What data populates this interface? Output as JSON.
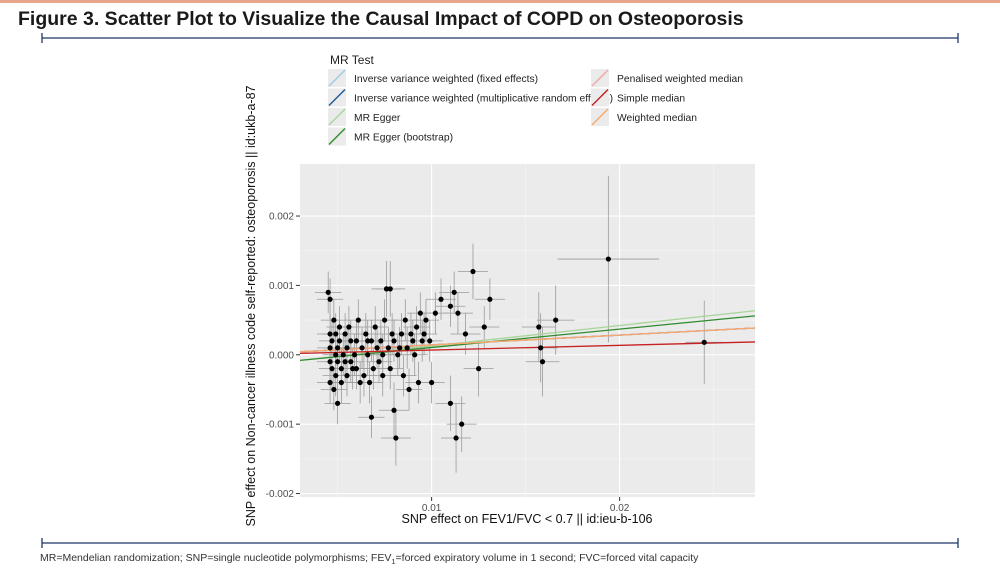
{
  "figure": {
    "title": "Figure 3. Scatter Plot to Visualize the Causal Impact of COPD on Osteoporosis",
    "footnote_before": "MR=Mendelian randomization; SNP=single nucleotide polymorphisms; FEV",
    "footnote_sub": "1",
    "footnote_after": "=forced expiratory volume in 1 second; FVC=forced vital capacity",
    "rule_color": "#1f3864",
    "accent_color": "#e8a58a"
  },
  "chart_data": {
    "type": "scatter",
    "xlabel": "SNP effect on FEV1/FVC < 0.7 || id:ieu-b-106",
    "ylabel": "SNP effect on Non-cancer illness code  self-reported: osteoporosis || id:ukb-a-87",
    "xlim": [
      0.003,
      0.0272
    ],
    "ylim": [
      -0.00205,
      0.00275
    ],
    "xticks": [
      0.01,
      0.02
    ],
    "xtick_labels": [
      "0.01",
      "0.02"
    ],
    "yticks": [
      -0.002,
      -0.001,
      0.0,
      0.001,
      0.002
    ],
    "ytick_labels": [
      "-0.002",
      "-0.001",
      "0.000",
      "0.001",
      "0.002"
    ],
    "grid": true,
    "legend": {
      "title": "MR Test",
      "placement": "top",
      "entries": [
        {
          "label": "Inverse variance weighted (fixed effects)",
          "color": "#9ec9e2"
        },
        {
          "label": "Inverse variance weighted (multiplicative random effects)",
          "color": "#1f5a96"
        },
        {
          "label": "MR Egger",
          "color": "#a8d59a"
        },
        {
          "label": "MR Egger (bootstrap)",
          "color": "#2e8b2e"
        },
        {
          "label": "Penalised weighted median",
          "color": "#f4a6a6"
        },
        {
          "label": "Simple median",
          "color": "#c62020"
        },
        {
          "label": "Weighted median",
          "color": "#f8a86c"
        }
      ]
    },
    "lines": [
      {
        "method": "Inverse variance weighted (fixed effects)",
        "intercept": 0.0,
        "slope": 0.0142
      },
      {
        "method": "Inverse variance weighted (multiplicative random effects)",
        "intercept": 0.0,
        "slope": 0.0142
      },
      {
        "method": "MR Egger",
        "intercept": -0.00017,
        "slope": 0.0296
      },
      {
        "method": "MR Egger (bootstrap)",
        "intercept": -0.00016,
        "slope": 0.0265
      },
      {
        "method": "Penalised weighted median",
        "intercept": 0.0,
        "slope": 0.0142
      },
      {
        "method": "Simple median",
        "intercept": 0.0,
        "slope": 0.0068
      },
      {
        "method": "Weighted median",
        "intercept": 0.0,
        "slope": 0.0142
      }
    ],
    "points": [
      {
        "x": 0.0045,
        "y": 0.0009,
        "xe": 0.0007,
        "ye": 0.0003
      },
      {
        "x": 0.0046,
        "y": 0.0008,
        "xe": 0.0007,
        "ye": 0.0003
      },
      {
        "x": 0.0046,
        "y": 0.0003,
        "xe": 0.0007,
        "ye": 0.0003
      },
      {
        "x": 0.0046,
        "y": 0.0001,
        "xe": 0.0007,
        "ye": 0.0003
      },
      {
        "x": 0.0046,
        "y": -0.0001,
        "xe": 0.0007,
        "ye": 0.0003
      },
      {
        "x": 0.0046,
        "y": -0.0004,
        "xe": 0.0007,
        "ye": 0.0003
      },
      {
        "x": 0.0047,
        "y": 0.0002,
        "xe": 0.0007,
        "ye": 0.0003
      },
      {
        "x": 0.0047,
        "y": -0.0002,
        "xe": 0.0007,
        "ye": 0.0003
      },
      {
        "x": 0.0048,
        "y": 0.0005,
        "xe": 0.0007,
        "ye": 0.0003
      },
      {
        "x": 0.0048,
        "y": -0.0005,
        "xe": 0.0007,
        "ye": 0.0003
      },
      {
        "x": 0.0049,
        "y": 0.0003,
        "xe": 0.0007,
        "ye": 0.0003
      },
      {
        "x": 0.0049,
        "y": 0.0,
        "xe": 0.0007,
        "ye": 0.0003
      },
      {
        "x": 0.0049,
        "y": -0.0003,
        "xe": 0.0007,
        "ye": 0.0003
      },
      {
        "x": 0.005,
        "y": -0.0007,
        "xe": 0.0007,
        "ye": 0.0003
      },
      {
        "x": 0.005,
        "y": 0.0001,
        "xe": 0.0007,
        "ye": 0.0003
      },
      {
        "x": 0.005,
        "y": -0.0001,
        "xe": 0.0007,
        "ye": 0.0003
      },
      {
        "x": 0.0051,
        "y": 0.0004,
        "xe": 0.0007,
        "ye": 0.0003
      },
      {
        "x": 0.0051,
        "y": 0.0002,
        "xe": 0.0007,
        "ye": 0.0003
      },
      {
        "x": 0.0052,
        "y": -0.0002,
        "xe": 0.0007,
        "ye": 0.0003
      },
      {
        "x": 0.0052,
        "y": -0.0004,
        "xe": 0.0007,
        "ye": 0.0003
      },
      {
        "x": 0.0053,
        "y": 0.0,
        "xe": 0.0007,
        "ye": 0.0003
      },
      {
        "x": 0.0054,
        "y": 0.0003,
        "xe": 0.0007,
        "ye": 0.0003
      },
      {
        "x": 0.0054,
        "y": -0.0001,
        "xe": 0.0007,
        "ye": 0.0003
      },
      {
        "x": 0.0055,
        "y": 0.0001,
        "xe": 0.0007,
        "ye": 0.0003
      },
      {
        "x": 0.0055,
        "y": -0.0003,
        "xe": 0.0007,
        "ye": 0.0003
      },
      {
        "x": 0.0056,
        "y": 0.0004,
        "xe": 0.0007,
        "ye": 0.0003
      },
      {
        "x": 0.0057,
        "y": -0.0001,
        "xe": 0.0007,
        "ye": 0.0003
      },
      {
        "x": 0.0057,
        "y": 0.0002,
        "xe": 0.0007,
        "ye": 0.0003
      },
      {
        "x": 0.0058,
        "y": -0.0002,
        "xe": 0.0007,
        "ye": 0.0003
      },
      {
        "x": 0.0059,
        "y": 0.0,
        "xe": 0.0007,
        "ye": 0.0003
      },
      {
        "x": 0.006,
        "y": 0.0002,
        "xe": 0.0007,
        "ye": 0.0003
      },
      {
        "x": 0.006,
        "y": -0.0002,
        "xe": 0.0007,
        "ye": 0.0003
      },
      {
        "x": 0.0061,
        "y": 0.0005,
        "xe": 0.0007,
        "ye": 0.0003
      },
      {
        "x": 0.0062,
        "y": -0.0004,
        "xe": 0.0007,
        "ye": 0.0003
      },
      {
        "x": 0.0063,
        "y": 0.0001,
        "xe": 0.0007,
        "ye": 0.0003
      },
      {
        "x": 0.0064,
        "y": -0.0003,
        "xe": 0.0007,
        "ye": 0.0003
      },
      {
        "x": 0.0065,
        "y": 0.0003,
        "xe": 0.0007,
        "ye": 0.0003
      },
      {
        "x": 0.0066,
        "y": 0.0002,
        "xe": 0.0007,
        "ye": 0.0003
      },
      {
        "x": 0.0066,
        "y": 0.0,
        "xe": 0.0007,
        "ye": 0.0003
      },
      {
        "x": 0.0067,
        "y": -0.0004,
        "xe": 0.0007,
        "ye": 0.0003
      },
      {
        "x": 0.0068,
        "y": -0.0009,
        "xe": 0.0007,
        "ye": 0.0003
      },
      {
        "x": 0.0068,
        "y": 0.0002,
        "xe": 0.0007,
        "ye": 0.0003
      },
      {
        "x": 0.0069,
        "y": -0.0002,
        "xe": 0.0007,
        "ye": 0.0003
      },
      {
        "x": 0.007,
        "y": 0.0004,
        "xe": 0.0007,
        "ye": 0.0003
      },
      {
        "x": 0.0071,
        "y": 0.0001,
        "xe": 0.0007,
        "ye": 0.0003
      },
      {
        "x": 0.0072,
        "y": -0.0001,
        "xe": 0.0007,
        "ye": 0.0003
      },
      {
        "x": 0.0073,
        "y": 0.0002,
        "xe": 0.0007,
        "ye": 0.0003
      },
      {
        "x": 0.0074,
        "y": 0.0,
        "xe": 0.0007,
        "ye": 0.0003
      },
      {
        "x": 0.0074,
        "y": -0.0003,
        "xe": 0.0007,
        "ye": 0.0003
      },
      {
        "x": 0.0075,
        "y": 0.0005,
        "xe": 0.0007,
        "ye": 0.0003
      },
      {
        "x": 0.0076,
        "y": 0.00095,
        "xe": 0.0008,
        "ye": 0.0004
      },
      {
        "x": 0.0078,
        "y": 0.00095,
        "xe": 0.0008,
        "ye": 0.0004
      },
      {
        "x": 0.0077,
        "y": 0.0001,
        "xe": 0.0007,
        "ye": 0.0003
      },
      {
        "x": 0.0078,
        "y": -0.0002,
        "xe": 0.0007,
        "ye": 0.0003
      },
      {
        "x": 0.0079,
        "y": 0.0003,
        "xe": 0.0007,
        "ye": 0.0003
      },
      {
        "x": 0.008,
        "y": -0.0008,
        "xe": 0.0008,
        "ye": 0.0004
      },
      {
        "x": 0.008,
        "y": 0.0002,
        "xe": 0.0007,
        "ye": 0.0003
      },
      {
        "x": 0.0081,
        "y": -0.0012,
        "xe": 0.0008,
        "ye": 0.0004
      },
      {
        "x": 0.0082,
        "y": 0.0,
        "xe": 0.0007,
        "ye": 0.0003
      },
      {
        "x": 0.0083,
        "y": 0.0001,
        "xe": 0.0007,
        "ye": 0.0003
      },
      {
        "x": 0.0084,
        "y": 0.0003,
        "xe": 0.0007,
        "ye": 0.0003
      },
      {
        "x": 0.0085,
        "y": -0.0003,
        "xe": 0.0007,
        "ye": 0.0003
      },
      {
        "x": 0.0086,
        "y": 0.0005,
        "xe": 0.0007,
        "ye": 0.0003
      },
      {
        "x": 0.0087,
        "y": 0.0001,
        "xe": 0.0007,
        "ye": 0.0003
      },
      {
        "x": 0.0088,
        "y": -0.0005,
        "xe": 0.0007,
        "ye": 0.0003
      },
      {
        "x": 0.0089,
        "y": 0.0003,
        "xe": 0.0007,
        "ye": 0.0003
      },
      {
        "x": 0.009,
        "y": 0.0002,
        "xe": 0.0007,
        "ye": 0.0003
      },
      {
        "x": 0.0091,
        "y": 0.0,
        "xe": 0.0007,
        "ye": 0.0003
      },
      {
        "x": 0.0092,
        "y": 0.0004,
        "xe": 0.0007,
        "ye": 0.0003
      },
      {
        "x": 0.0093,
        "y": -0.0004,
        "xe": 0.0007,
        "ye": 0.0003
      },
      {
        "x": 0.0094,
        "y": 0.0006,
        "xe": 0.0007,
        "ye": 0.0003
      },
      {
        "x": 0.0095,
        "y": 0.0002,
        "xe": 0.0007,
        "ye": 0.0003
      },
      {
        "x": 0.0096,
        "y": 0.0003,
        "xe": 0.0007,
        "ye": 0.0003
      },
      {
        "x": 0.0097,
        "y": 0.0005,
        "xe": 0.0007,
        "ye": 0.0003
      },
      {
        "x": 0.0099,
        "y": 0.0002,
        "xe": 0.0007,
        "ye": 0.0003
      },
      {
        "x": 0.01,
        "y": -0.0004,
        "xe": 0.0007,
        "ye": 0.0003
      },
      {
        "x": 0.0102,
        "y": 0.0006,
        "xe": 0.0007,
        "ye": 0.0003
      },
      {
        "x": 0.0105,
        "y": 0.0008,
        "xe": 0.0008,
        "ye": 0.0003
      },
      {
        "x": 0.011,
        "y": 0.0007,
        "xe": 0.0008,
        "ye": 0.0003
      },
      {
        "x": 0.011,
        "y": -0.0007,
        "xe": 0.0008,
        "ye": 0.0004
      },
      {
        "x": 0.0112,
        "y": 0.0009,
        "xe": 0.0008,
        "ye": 0.0003
      },
      {
        "x": 0.0113,
        "y": -0.0012,
        "xe": 0.0008,
        "ye": 0.0005
      },
      {
        "x": 0.0114,
        "y": 0.0006,
        "xe": 0.0008,
        "ye": 0.0003
      },
      {
        "x": 0.0116,
        "y": -0.001,
        "xe": 0.0008,
        "ye": 0.0004
      },
      {
        "x": 0.0118,
        "y": 0.0003,
        "xe": 0.0008,
        "ye": 0.0003
      },
      {
        "x": 0.0122,
        "y": 0.0012,
        "xe": 0.0008,
        "ye": 0.0004
      },
      {
        "x": 0.0125,
        "y": -0.0002,
        "xe": 0.0008,
        "ye": 0.0004
      },
      {
        "x": 0.0128,
        "y": 0.0004,
        "xe": 0.0008,
        "ye": 0.0003
      },
      {
        "x": 0.0131,
        "y": 0.0008,
        "xe": 0.0008,
        "ye": 0.0003
      },
      {
        "x": 0.0157,
        "y": 0.0004,
        "xe": 0.0009,
        "ye": 0.0005
      },
      {
        "x": 0.0158,
        "y": 0.0001,
        "xe": 0.0009,
        "ye": 0.0005
      },
      {
        "x": 0.0159,
        "y": -0.0001,
        "xe": 0.0009,
        "ye": 0.0005
      },
      {
        "x": 0.0166,
        "y": 0.0005,
        "xe": 0.001,
        "ye": 0.0005
      },
      {
        "x": 0.0194,
        "y": 0.00138,
        "xe": 0.0027,
        "ye": 0.0012
      },
      {
        "x": 0.0245,
        "y": 0.00018,
        "xe": 0.001,
        "ye": 0.0006
      }
    ]
  }
}
